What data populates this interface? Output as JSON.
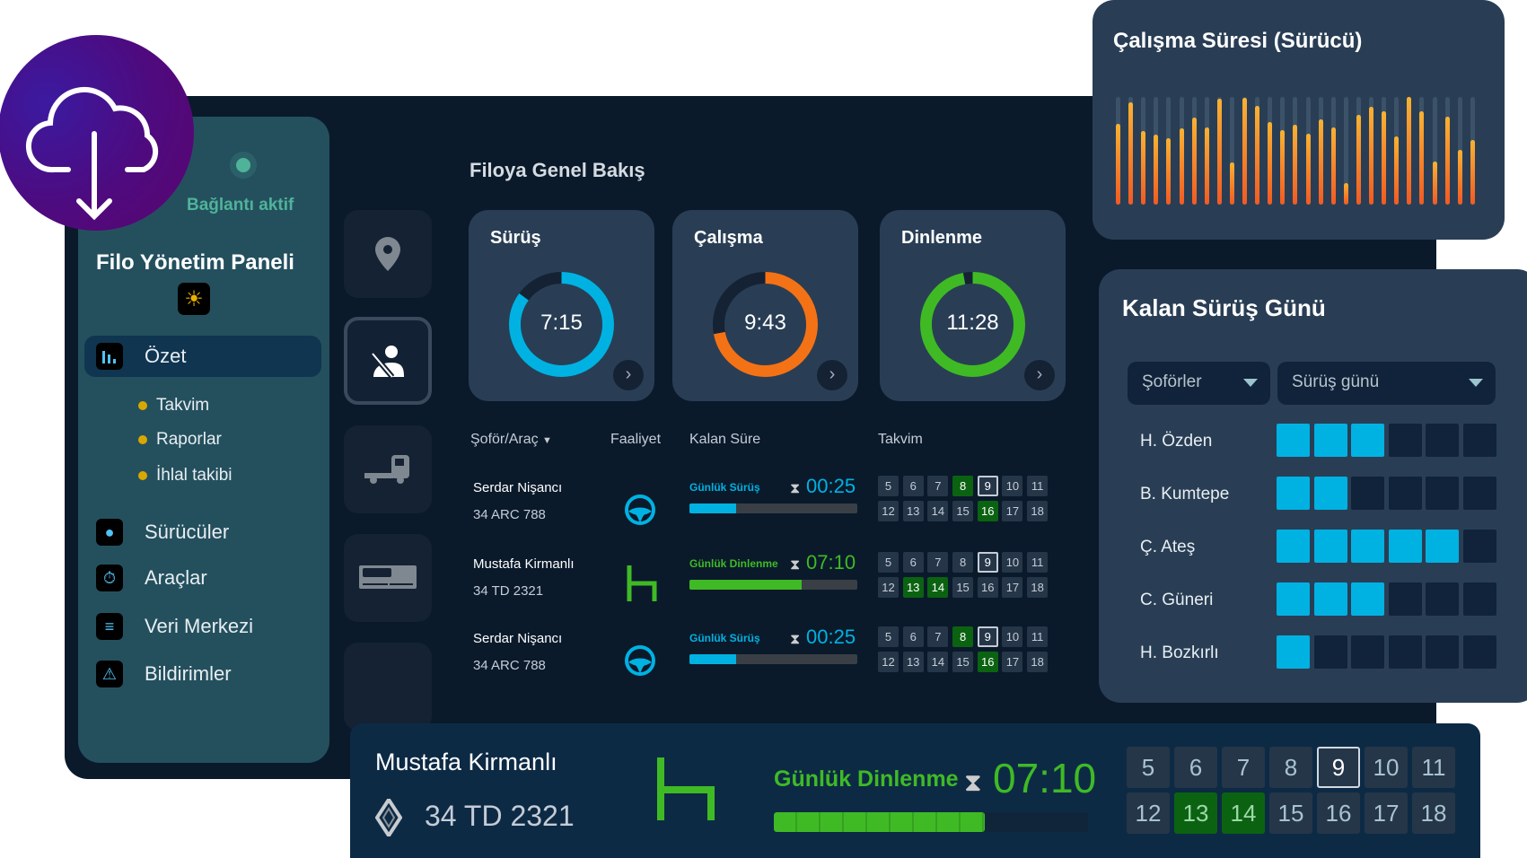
{
  "sidebar": {
    "status": "Bağlantı aktif",
    "title": "Filo Yönetim Paneli",
    "active": "Özet",
    "sub_items": [
      "Takvim",
      "Raporlar",
      "İhlal takibi"
    ],
    "items": [
      "Sürücüler",
      "Araçlar",
      "Veri Merkezi",
      "Bildirimler"
    ]
  },
  "overview": {
    "title": "Filoya Genel Bakış",
    "cards": [
      {
        "title": "Sürüş",
        "value": "7:15",
        "fraction": 0.85,
        "color": "#00b2e2"
      },
      {
        "title": "Çalışma",
        "value": "9:43",
        "fraction": 0.72,
        "color": "#f47216"
      },
      {
        "title": "Dinlenme",
        "value": "11:28",
        "fraction": 0.97,
        "color": "#3fba25"
      }
    ]
  },
  "table": {
    "headers": [
      "Şoför/Araç",
      "Faaliyet",
      "Kalan Süre",
      "Takvim"
    ],
    "rows": [
      {
        "name": "Serdar Nişancı",
        "plate": "34 ARC 788",
        "activity": "driving",
        "label": "Günlük Sürüş",
        "time": "00:25",
        "progress": 0.28,
        "color": "#00b2e2",
        "days": [
          "5",
          "6",
          "7",
          "8",
          "9",
          "10",
          "11",
          "12",
          "13",
          "14",
          "15",
          "16",
          "17",
          "18"
        ],
        "green": [
          "8",
          "16"
        ],
        "selected": "9"
      },
      {
        "name": "Mustafa Kirmanlı",
        "plate": "34 TD 2321",
        "activity": "rest",
        "label": "Günlük Dinlenme",
        "time": "07:10",
        "progress": 0.67,
        "color": "#3fba25",
        "days": [
          "5",
          "6",
          "7",
          "8",
          "9",
          "10",
          "11",
          "12",
          "13",
          "14",
          "15",
          "16",
          "17",
          "18"
        ],
        "green": [
          "13",
          "14"
        ],
        "selected": "9"
      },
      {
        "name": "Serdar Nişancı",
        "plate": "34 ARC 788",
        "activity": "driving",
        "label": "Günlük Sürüş",
        "time": "00:25",
        "progress": 0.28,
        "color": "#00b2e2",
        "days": [
          "5",
          "6",
          "7",
          "8",
          "9",
          "10",
          "11",
          "12",
          "13",
          "14",
          "15",
          "16",
          "17",
          "18"
        ],
        "green": [
          "8",
          "16"
        ],
        "selected": "9"
      }
    ]
  },
  "chart_data": {
    "type": "bar",
    "title": "Çalışma Süresi (Sürücü)",
    "ylim": [
      0,
      1
    ],
    "values": [
      0.75,
      0.95,
      0.68,
      0.65,
      0.62,
      0.71,
      0.81,
      0.72,
      0.98,
      0.39,
      0.99,
      0.92,
      0.77,
      0.69,
      0.74,
      0.66,
      0.79,
      0.72,
      0.2,
      0.83,
      0.91,
      0.87,
      0.63,
      1.0,
      0.87,
      0.4,
      0.82,
      0.51,
      0.6
    ]
  },
  "remaining": {
    "title": "Kalan Sürüş Günü",
    "filter1": "Şoförler",
    "filter2": "Sürüş günü",
    "total": 6,
    "drivers": [
      {
        "name": "H. Özden",
        "days": 3
      },
      {
        "name": "B. Kumtepe",
        "days": 2
      },
      {
        "name": "Ç. Ateş",
        "days": 5
      },
      {
        "name": "C. Güneri",
        "days": 3
      },
      {
        "name": "H. Bozkırlı",
        "days": 1
      }
    ]
  },
  "detail": {
    "name": "Mustafa Kirmanlı",
    "plate": "34 TD 2321",
    "label": "Günlük Dinlenme",
    "time": "07:10",
    "progress": 0.67,
    "days": [
      "5",
      "6",
      "7",
      "8",
      "9",
      "10",
      "11",
      "12",
      "13",
      "14",
      "15",
      "16",
      "17",
      "18"
    ],
    "green": [
      "13",
      "14"
    ],
    "selected": "9"
  }
}
